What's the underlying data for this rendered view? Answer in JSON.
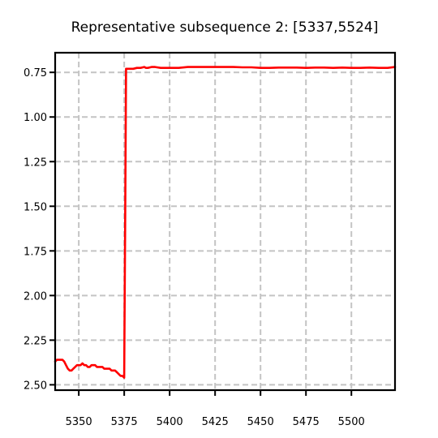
{
  "chart_data": {
    "type": "line",
    "title": "Representative subsequence 2: [5337,5524]",
    "xlabel": "",
    "ylabel": "",
    "xlim": [
      5337,
      5524
    ],
    "ylim": [
      2.53,
      0.64
    ],
    "y_inverted": true,
    "grid": true,
    "grid_style": "dashed",
    "x_ticks": [
      5350,
      5375,
      5400,
      5425,
      5450,
      5475,
      5500
    ],
    "x_tick_labels": [
      "5350",
      "5375",
      "5400",
      "5425",
      "5450",
      "5475",
      "5500"
    ],
    "y_ticks": [
      0.75,
      1.0,
      1.25,
      1.5,
      1.75,
      2.0,
      2.25,
      2.5
    ],
    "y_tick_labels": [
      "0.75",
      "1.00",
      "1.25",
      "1.50",
      "1.75",
      "2.00",
      "2.25",
      "2.50"
    ],
    "series": [
      {
        "color": "#ff0000",
        "x": [
          5337,
          5338,
          5340,
          5341,
          5342,
          5343,
          5344,
          5345,
          5346,
          5347,
          5348,
          5349,
          5350,
          5351,
          5352,
          5353,
          5354,
          5355,
          5356,
          5357,
          5358,
          5359,
          5360,
          5361,
          5362,
          5363,
          5364,
          5365,
          5366,
          5367,
          5368,
          5369,
          5370,
          5371,
          5372,
          5373,
          5374,
          5375,
          5375.5,
          5376,
          5378,
          5380,
          5382,
          5384,
          5386,
          5387,
          5388,
          5390,
          5392,
          5395,
          5400,
          5405,
          5410,
          5415,
          5420,
          5425,
          5430,
          5435,
          5440,
          5445,
          5450,
          5455,
          5460,
          5465,
          5470,
          5475,
          5480,
          5485,
          5490,
          5495,
          5500,
          5505,
          5510,
          5515,
          5520,
          5524
        ],
        "y": [
          2.37,
          2.36,
          2.36,
          2.36,
          2.37,
          2.39,
          2.41,
          2.42,
          2.42,
          2.41,
          2.4,
          2.39,
          2.39,
          2.39,
          2.38,
          2.39,
          2.39,
          2.4,
          2.4,
          2.39,
          2.39,
          2.39,
          2.4,
          2.4,
          2.4,
          2.4,
          2.41,
          2.41,
          2.41,
          2.41,
          2.42,
          2.42,
          2.42,
          2.43,
          2.44,
          2.45,
          2.45,
          2.46,
          1.6,
          0.73,
          0.73,
          0.73,
          0.725,
          0.725,
          0.72,
          0.725,
          0.725,
          0.72,
          0.72,
          0.725,
          0.725,
          0.725,
          0.72,
          0.72,
          0.72,
          0.72,
          0.72,
          0.72,
          0.722,
          0.722,
          0.725,
          0.725,
          0.723,
          0.723,
          0.723,
          0.725,
          0.723,
          0.723,
          0.725,
          0.723,
          0.725,
          0.725,
          0.723,
          0.725,
          0.725,
          0.72
        ]
      }
    ]
  }
}
